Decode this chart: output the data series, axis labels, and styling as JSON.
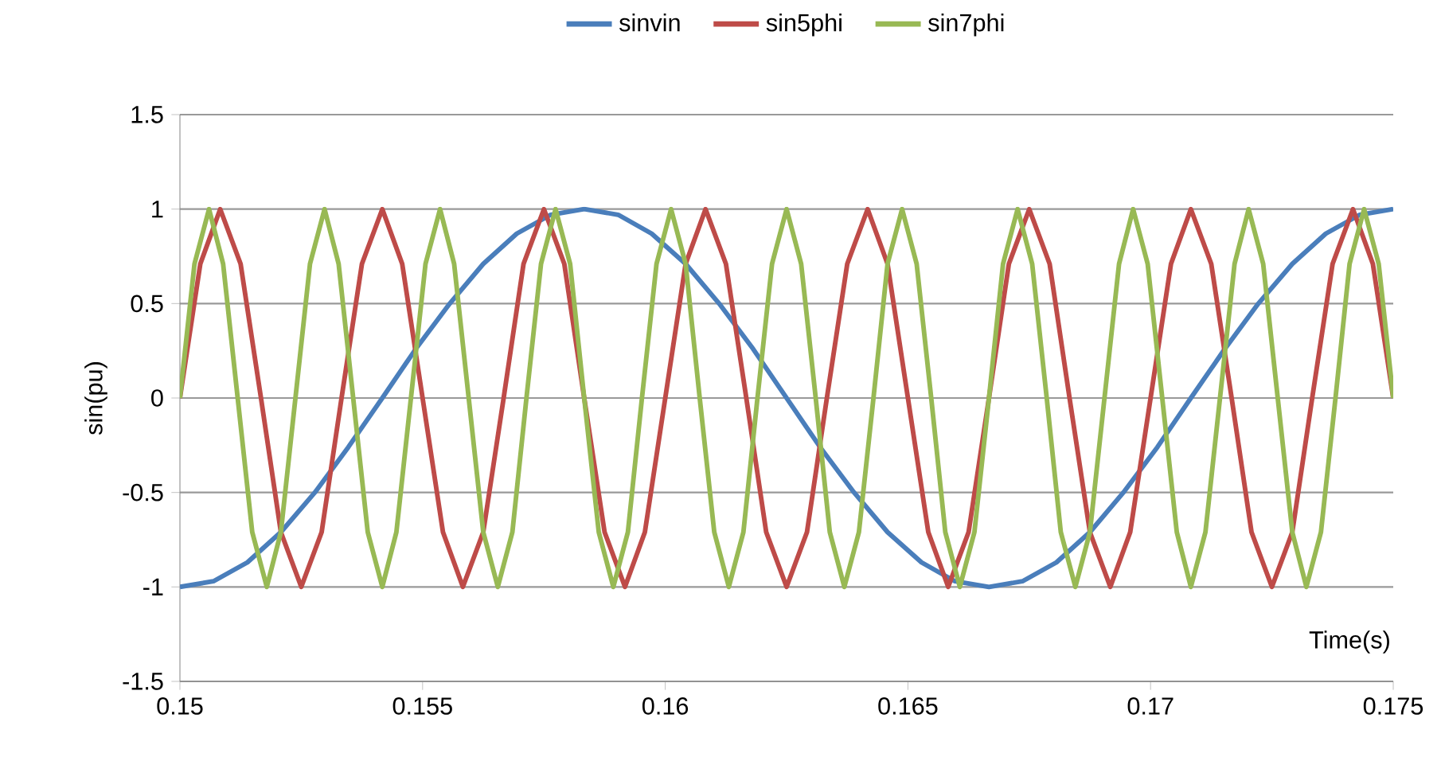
{
  "chart_data": {
    "type": "line",
    "xlabel": "Time(s)",
    "ylabel": "sin(pu)",
    "xlim": [
      0.15,
      0.175
    ],
    "ylim": [
      -1.5,
      1.5
    ],
    "xticks": [
      0.15,
      0.155,
      0.16,
      0.165,
      0.17,
      0.175
    ],
    "yticks": [
      -1.5,
      -1,
      -0.5,
      0,
      0.5,
      1,
      1.5
    ],
    "grid": "y",
    "legend": "top",
    "marker": "none",
    "line_style": "solid",
    "series": [
      {
        "name": "sinvin",
        "color": "#4a7ebb",
        "x": [
          0.15,
          0.15069,
          0.15139,
          0.15208,
          0.15278,
          0.15347,
          0.15417,
          0.15486,
          0.15556,
          0.15625,
          0.15694,
          0.15764,
          0.15833,
          0.15903,
          0.15972,
          0.16042,
          0.16111,
          0.16181,
          0.1625,
          0.16319,
          0.16389,
          0.16458,
          0.16528,
          0.16597,
          0.16667,
          0.16736,
          0.16806,
          0.16875,
          0.16944,
          0.17014,
          0.17083,
          0.17153,
          0.17222,
          0.17292,
          0.17361,
          0.17431,
          0.175
        ],
        "values": [
          -1,
          -0.97,
          -0.87,
          -0.71,
          -0.5,
          -0.26,
          0,
          0.26,
          0.5,
          0.71,
          0.87,
          0.97,
          1,
          0.97,
          0.87,
          0.71,
          0.5,
          0.26,
          0,
          -0.26,
          -0.5,
          -0.71,
          -0.87,
          -0.97,
          -1,
          -0.97,
          -0.87,
          -0.71,
          -0.5,
          -0.26,
          0,
          0.26,
          0.5,
          0.71,
          0.87,
          0.97,
          1
        ]
      },
      {
        "name": "sin5phi",
        "color": "#be4b48",
        "x": [
          0.15,
          0.15042,
          0.15083,
          0.15125,
          0.15167,
          0.15208,
          0.1525,
          0.15292,
          0.15333,
          0.15375,
          0.15417,
          0.15458,
          0.155,
          0.15542,
          0.15583,
          0.15625,
          0.15667,
          0.15708,
          0.1575,
          0.15792,
          0.15833,
          0.15875,
          0.15917,
          0.15958,
          0.16,
          0.16042,
          0.16083,
          0.16125,
          0.16167,
          0.16208,
          0.1625,
          0.16292,
          0.16333,
          0.16375,
          0.16417,
          0.16458,
          0.165,
          0.16542,
          0.16583,
          0.16625,
          0.16667,
          0.16708,
          0.1675,
          0.16792,
          0.16833,
          0.16875,
          0.16917,
          0.16958,
          0.17,
          0.17042,
          0.17083,
          0.17125,
          0.17167,
          0.17208,
          0.1725,
          0.17292,
          0.17333,
          0.17375,
          0.17417,
          0.17458,
          0.175
        ],
        "values": [
          0,
          0.71,
          1,
          0.71,
          0,
          -0.71,
          -1,
          -0.71,
          0,
          0.71,
          1,
          0.71,
          0,
          -0.71,
          -1,
          -0.71,
          0,
          0.71,
          1,
          0.71,
          0,
          -0.71,
          -1,
          -0.71,
          0,
          0.71,
          1,
          0.71,
          0,
          -0.71,
          -1,
          -0.71,
          0,
          0.71,
          1,
          0.71,
          0,
          -0.71,
          -1,
          -0.71,
          0,
          0.71,
          1,
          0.71,
          0,
          -0.71,
          -1,
          -0.71,
          0,
          0.71,
          1,
          0.71,
          0,
          -0.71,
          -1,
          -0.71,
          0,
          0.71,
          1,
          0.71,
          0
        ]
      },
      {
        "name": "sin7phi",
        "color": "#98b954",
        "x": [
          0.15,
          0.1503,
          0.1506,
          0.15089,
          0.15119,
          0.15149,
          0.15179,
          0.15208,
          0.15238,
          0.15268,
          0.15298,
          0.15327,
          0.15357,
          0.15387,
          0.15417,
          0.15446,
          0.15476,
          0.15506,
          0.15536,
          0.15565,
          0.15595,
          0.15625,
          0.15655,
          0.15685,
          0.15714,
          0.15744,
          0.15774,
          0.15804,
          0.15833,
          0.15863,
          0.15893,
          0.15923,
          0.15952,
          0.15982,
          0.16012,
          0.16042,
          0.16071,
          0.16101,
          0.16131,
          0.16161,
          0.1619,
          0.1622,
          0.1625,
          0.1628,
          0.1631,
          0.16339,
          0.16369,
          0.16399,
          0.16429,
          0.16458,
          0.16488,
          0.16518,
          0.16548,
          0.16577,
          0.16607,
          0.16637,
          0.16667,
          0.16696,
          0.16726,
          0.16756,
          0.16786,
          0.16815,
          0.16845,
          0.16875,
          0.16905,
          0.16935,
          0.16964,
          0.16994,
          0.17024,
          0.17054,
          0.17083,
          0.17113,
          0.17143,
          0.17173,
          0.17202,
          0.17232,
          0.17262,
          0.17292,
          0.17321,
          0.17351,
          0.17381,
          0.1741,
          0.1744,
          0.1747,
          0.175
        ],
        "values": [
          0,
          0.71,
          1,
          0.71,
          0,
          -0.71,
          -1,
          -0.71,
          0,
          0.71,
          1,
          0.71,
          0,
          -0.71,
          -1,
          -0.71,
          0,
          0.71,
          1,
          0.71,
          0,
          -0.71,
          -1,
          -0.71,
          0,
          0.71,
          1,
          0.71,
          0,
          -0.71,
          -1,
          -0.71,
          0,
          0.71,
          1,
          0.71,
          0,
          -0.71,
          -1,
          -0.71,
          0,
          0.71,
          1,
          0.71,
          0,
          -0.71,
          -1,
          -0.71,
          0,
          0.71,
          1,
          0.71,
          0,
          -0.71,
          -1,
          -0.71,
          0,
          0.71,
          1,
          0.71,
          0,
          -0.71,
          -1,
          -0.71,
          0,
          0.71,
          1,
          0.71,
          0,
          -0.71,
          -1,
          -0.71,
          0,
          0.71,
          1,
          0.71,
          0,
          -0.71,
          -1,
          -0.71,
          0,
          0.71,
          1,
          0.71,
          0
        ]
      }
    ]
  }
}
